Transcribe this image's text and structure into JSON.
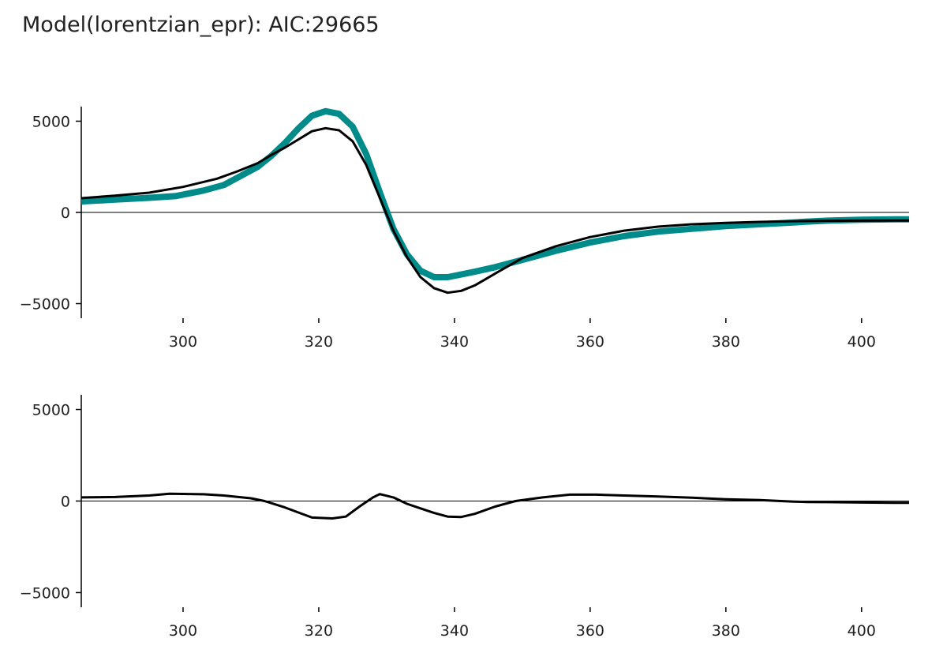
{
  "title": "Model(lorentzian_epr): AIC:29665",
  "colors": {
    "data": "#008b8b",
    "fit": "#000000",
    "axis": "#000000"
  },
  "chart_data": [
    {
      "type": "line",
      "title": "Model(lorentzian_epr): AIC:29665",
      "xlabel": "",
      "ylabel": "",
      "xlim": [
        285,
        407
      ],
      "ylim": [
        -5800,
        5800
      ],
      "xticks": [
        300,
        320,
        340,
        360,
        380,
        400
      ],
      "xtick_labels": [
        "300",
        "320",
        "340",
        "360",
        "380",
        "400"
      ],
      "yticks": [
        5000,
        0,
        -5000
      ],
      "ytick_labels": [
        "5000",
        "0",
        "−5000"
      ],
      "zero_line": true,
      "grid": false,
      "series": [
        {
          "role": "data",
          "color": "#008b8b",
          "x": [
            285,
            290,
            295,
            299,
            303,
            306,
            308,
            311,
            313,
            315,
            317,
            319,
            321,
            323,
            325,
            327,
            329,
            331,
            333,
            335,
            337,
            339,
            341,
            343,
            346,
            350,
            355,
            360,
            365,
            370,
            375,
            380,
            385,
            390,
            392,
            395,
            400,
            405,
            407
          ],
          "y": [
            600,
            700,
            800,
            900,
            1200,
            1500,
            1900,
            2500,
            3100,
            3800,
            4600,
            5300,
            5550,
            5400,
            4700,
            3200,
            1100,
            -900,
            -2300,
            -3200,
            -3550,
            -3550,
            -3400,
            -3250,
            -3000,
            -2600,
            -2100,
            -1650,
            -1300,
            -1050,
            -900,
            -750,
            -650,
            -550,
            -500,
            -450,
            -400,
            -380,
            -380
          ]
        },
        {
          "role": "fit",
          "color": "#000000",
          "x": [
            285,
            290,
            295,
            300,
            305,
            308,
            311,
            313,
            315,
            317,
            319,
            321,
            323,
            325,
            327,
            329,
            331,
            333,
            335,
            337,
            339,
            341,
            343,
            346,
            350,
            355,
            360,
            365,
            370,
            375,
            380,
            385,
            390,
            395,
            400,
            405,
            407
          ],
          "y": [
            780,
            920,
            1080,
            1400,
            1850,
            2250,
            2700,
            3150,
            3550,
            4000,
            4450,
            4620,
            4500,
            3900,
            2600,
            800,
            -1000,
            -2450,
            -3550,
            -4150,
            -4400,
            -4300,
            -4000,
            -3350,
            -2500,
            -1850,
            -1350,
            -1000,
            -780,
            -650,
            -570,
            -520,
            -480,
            -460,
            -450,
            -440,
            -440
          ]
        }
      ]
    },
    {
      "type": "line",
      "title": "",
      "xlabel": "",
      "ylabel": "",
      "xlim": [
        285,
        407
      ],
      "ylim": [
        -5800,
        5800
      ],
      "xticks": [
        300,
        320,
        340,
        360,
        380,
        400
      ],
      "xtick_labels": [
        "300",
        "320",
        "340",
        "360",
        "380",
        "400"
      ],
      "yticks": [
        5000,
        0,
        -5000
      ],
      "ytick_labels": [
        "5000",
        "0",
        "−5000"
      ],
      "zero_line": true,
      "grid": false,
      "series": [
        {
          "role": "residual",
          "color": "#000000",
          "x": [
            285,
            290,
            295,
            298,
            303,
            306,
            310,
            312,
            315,
            319,
            322,
            324,
            326,
            328,
            329,
            331,
            333,
            335,
            337,
            339,
            341,
            343,
            346,
            349,
            353,
            357,
            361,
            365,
            370,
            375,
            380,
            385,
            390,
            392,
            395,
            400,
            405,
            407
          ],
          "y": [
            200,
            220,
            300,
            400,
            370,
            300,
            150,
            0,
            -350,
            -900,
            -950,
            -850,
            -300,
            200,
            380,
            200,
            -150,
            -400,
            -650,
            -850,
            -870,
            -700,
            -300,
            0,
            200,
            350,
            350,
            300,
            250,
            180,
            100,
            50,
            -30,
            -50,
            -60,
            -80,
            -100,
            -100
          ]
        }
      ]
    }
  ]
}
